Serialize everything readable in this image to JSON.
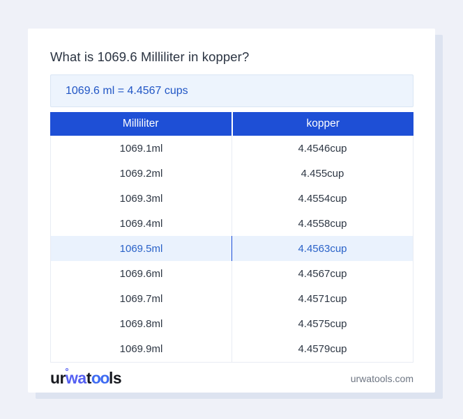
{
  "page": {
    "title": "What is 1069.6 Milliliter in kopper?"
  },
  "result": {
    "text": "1069.6 ml = 4.4567 cups"
  },
  "table": {
    "headers": {
      "left": "Milliliter",
      "right": "kopper"
    },
    "highlighted_row_index": 4,
    "rows": [
      {
        "ml": "1069.1ml",
        "cup": "4.4546cup"
      },
      {
        "ml": "1069.2ml",
        "cup": "4.455cup"
      },
      {
        "ml": "1069.3ml",
        "cup": "4.4554cup"
      },
      {
        "ml": "1069.4ml",
        "cup": "4.4558cup"
      },
      {
        "ml": "1069.5ml",
        "cup": "4.4563cup"
      },
      {
        "ml": "1069.6ml",
        "cup": "4.4567cup"
      },
      {
        "ml": "1069.7ml",
        "cup": "4.4571cup"
      },
      {
        "ml": "1069.8ml",
        "cup": "4.4575cup"
      },
      {
        "ml": "1069.9ml",
        "cup": "4.4579cup"
      }
    ]
  },
  "footer": {
    "logo": {
      "part1": "ur",
      "part2": "wa",
      "part3": "t",
      "part4": "oo",
      "part5": "ls"
    },
    "site": "urwatools.com"
  },
  "colors": {
    "page_background": "#eff1f8",
    "card_background": "#ffffff",
    "header_blue": "#1e4fd6",
    "result_box_background": "#edf4fd",
    "result_text_blue": "#2156c5",
    "highlight_row_background": "#eaf2fd",
    "highlight_row_text": "#2a62c8",
    "row_text": "#2e3744",
    "logo_blue_1": "#5560f2",
    "logo_blue_2": "#3e6bf2"
  }
}
